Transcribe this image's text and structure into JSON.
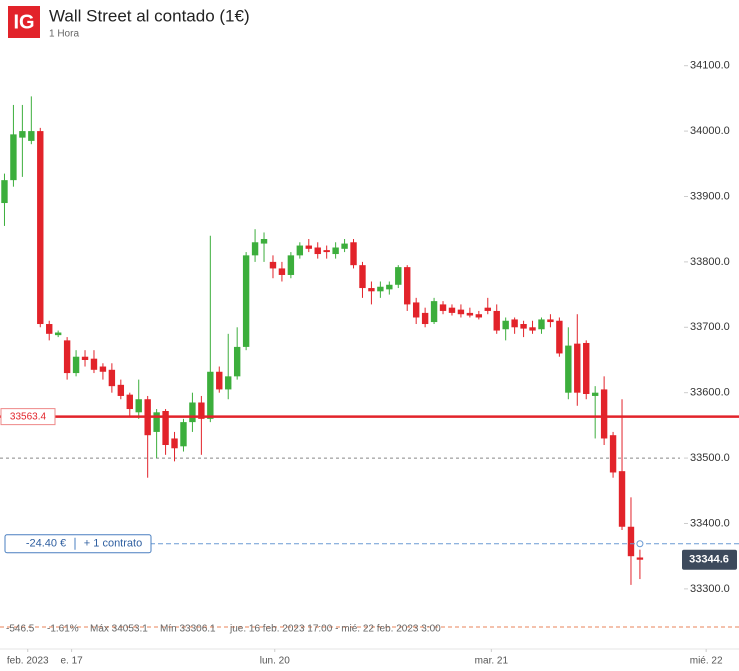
{
  "header": {
    "logo": "IG",
    "title": "Wall Street al contado (1€)",
    "subtitle": "1 Hora"
  },
  "chart_data": {
    "type": "candlestick",
    "up_color": "#3cae3c",
    "down_color": "#e2232a",
    "open": [
      33890,
      33925,
      33990,
      33985,
      34000,
      33705,
      33688,
      33680,
      33630,
      33655,
      33652,
      33640,
      33635,
      33612,
      33597,
      33570,
      33590,
      33540,
      33572,
      33530,
      33518,
      33555,
      33585,
      33560,
      33632,
      33605,
      33625,
      33670,
      33810,
      33828,
      33800,
      33790,
      33780,
      33810,
      33825,
      33822,
      33818,
      33812,
      33820,
      33830,
      33795,
      33760,
      33755,
      33758,
      33765,
      33792,
      33738,
      33722,
      33708,
      33735,
      33730,
      33727,
      33722,
      33720,
      33730,
      33725,
      33697,
      33712,
      33705,
      33700,
      33697,
      33712,
      33710,
      33600,
      33675,
      33676,
      33595,
      33605,
      33535,
      33480,
      33395,
      33348
    ],
    "high": [
      33935,
      34040,
      34040,
      34053.1,
      34005,
      33710,
      33695,
      33685,
      33665,
      33665,
      33665,
      33645,
      33645,
      33620,
      33600,
      33620,
      33595,
      33575,
      33575,
      33540,
      33560,
      33600,
      33595,
      33840,
      33640,
      33690,
      33700,
      33815,
      33850,
      33845,
      33810,
      33800,
      33815,
      33830,
      33835,
      33830,
      33825,
      33830,
      33835,
      33835,
      33800,
      33770,
      33770,
      33770,
      33795,
      33795,
      33745,
      33730,
      33745,
      33740,
      33735,
      33735,
      33730,
      33725,
      33745,
      33735,
      33715,
      33715,
      33710,
      33710,
      33715,
      33720,
      33715,
      33700,
      33720,
      33680,
      33610,
      33625,
      33540,
      33590,
      33440,
      33360
    ],
    "low": [
      33855,
      33915,
      33930,
      33980,
      33700,
      33680,
      33685,
      33620,
      33625,
      33640,
      33630,
      33620,
      33600,
      33590,
      33565,
      33560,
      33470,
      33500,
      33505,
      33495,
      33510,
      33540,
      33505,
      33555,
      33600,
      33590,
      33620,
      33665,
      33800,
      33800,
      33775,
      33770,
      33775,
      33805,
      33815,
      33805,
      33805,
      33805,
      33815,
      33790,
      33745,
      33735,
      33745,
      33750,
      33760,
      33725,
      33705,
      33700,
      33705,
      33720,
      33718,
      33715,
      33715,
      33712,
      33720,
      33690,
      33680,
      33690,
      33685,
      33690,
      33690,
      33700,
      33655,
      33590,
      33580,
      33590,
      33530,
      33520,
      33470,
      33390,
      33306.1,
      33315
    ],
    "close": [
      33925,
      33995,
      34000,
      34000,
      33705,
      33690,
      33692,
      33630,
      33655,
      33650,
      33635,
      33632,
      33610,
      33595,
      33575,
      33590,
      33535,
      33570,
      33520,
      33515,
      33555,
      33585,
      33560,
      33632,
      33605,
      33625,
      33670,
      33810,
      33830,
      33835,
      33790,
      33780,
      33810,
      33825,
      33820,
      33812,
      33815,
      33822,
      33828,
      33795,
      33760,
      33755,
      33762,
      33765,
      33792,
      33735,
      33715,
      33705,
      33740,
      33725,
      33722,
      33720,
      33718,
      33715,
      33725,
      33695,
      33710,
      33700,
      33698,
      33695,
      33712,
      33708,
      33660,
      33672,
      33600,
      33598,
      33600,
      33530,
      33478,
      33395,
      33350,
      33344.6
    ],
    "ylim": [
      33283,
      34124
    ],
    "yticks": [
      {
        "value": 33300,
        "label": "33300.0"
      },
      {
        "value": 33400,
        "label": "33400.0"
      },
      {
        "value": 33500,
        "label": "33500.0"
      },
      {
        "value": 33600,
        "label": "33600.0"
      },
      {
        "value": 33700,
        "label": "33700.0"
      },
      {
        "value": 33800,
        "label": "33800.0"
      },
      {
        "value": 33900,
        "label": "33900.0"
      },
      {
        "value": 34000,
        "label": "34000.0"
      },
      {
        "value": 34100,
        "label": "34100.0"
      }
    ],
    "xticks": [
      {
        "value": 2.6,
        "label": "feb. 2023"
      },
      {
        "value": 7.5,
        "label": "e. 17"
      },
      {
        "value": 30.2,
        "label": "lun. 20"
      },
      {
        "value": 54.4,
        "label": "mar. 21"
      },
      {
        "value": 78.4,
        "label": "mié. 22"
      }
    ],
    "level": 33563.4,
    "dashed_level": 33500,
    "position_level": 33369,
    "position": {
      "pnl": "-24.40 €",
      "size": "+ 1 contrato"
    },
    "stats": {
      "change": "-546.5",
      "change_pct": "-1.61%",
      "max": "Máx 34053.1",
      "min": "Mín 33306.1",
      "range": "jue. 16 feb. 2023 17:00 - mié. 22 feb. 2023 3:00"
    }
  }
}
